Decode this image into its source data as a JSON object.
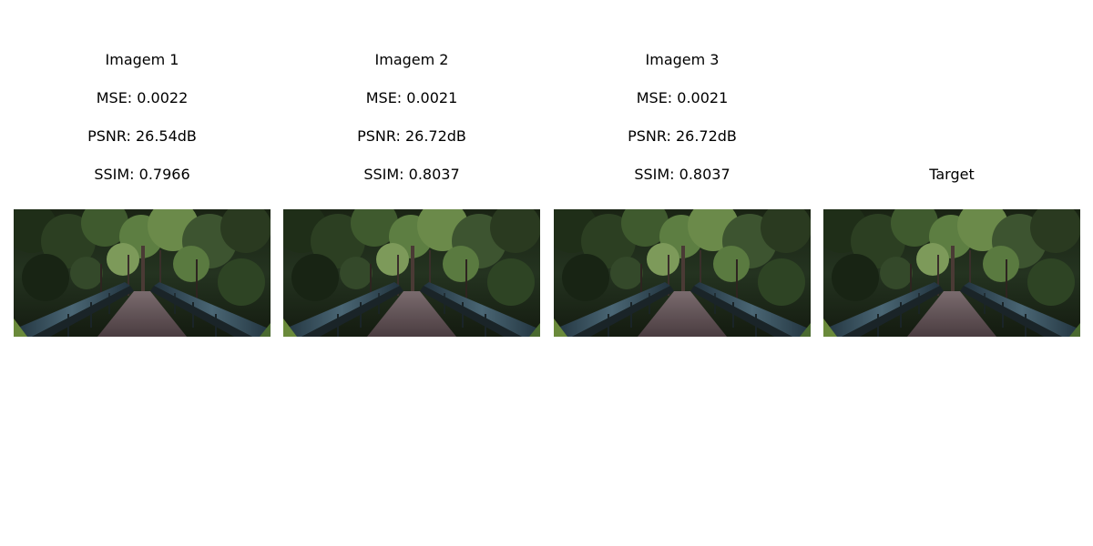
{
  "panels": [
    {
      "name": "Imagem 1",
      "lines": [
        "Imagem 1",
        "MSE: 0.0022",
        "PSNR: 26.54dB",
        "SSIM: 0.7966"
      ]
    },
    {
      "name": "Imagem 2",
      "lines": [
        "Imagem 2",
        "MSE: 0.0021",
        "PSNR: 26.72dB",
        "SSIM: 0.8037"
      ]
    },
    {
      "name": "Imagem 3",
      "lines": [
        "Imagem 3",
        "MSE: 0.0021",
        "PSNR: 26.72dB",
        "SSIM: 0.8037"
      ]
    },
    {
      "name": "Target",
      "lines": [
        "Target"
      ]
    }
  ],
  "colors": {
    "background": "#ffffff",
    "text": "#000000",
    "foliage_dark": "#1d2a17",
    "foliage_light": "#6b8a4a",
    "bridge_deck": "#5a4a4e",
    "railing": "#2f4450"
  }
}
